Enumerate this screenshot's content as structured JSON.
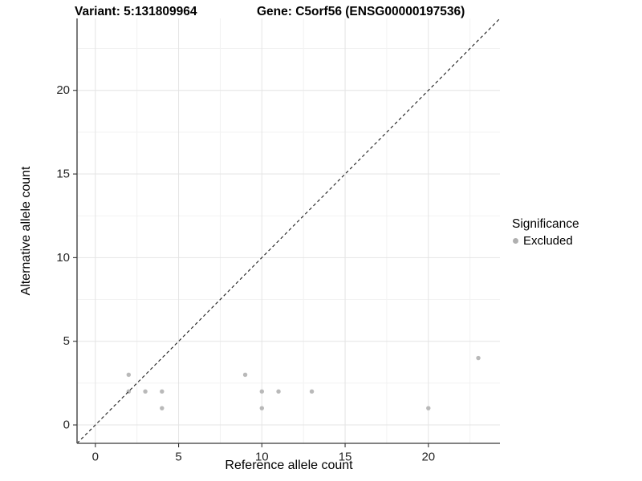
{
  "header": {
    "variant_title": "Variant: 5:131809964",
    "gene_title": "Gene: C5orf56 (ENSG00000197536)"
  },
  "chart_data": {
    "type": "scatter",
    "xlabel": "Reference allele count",
    "ylabel": "Alternative allele count",
    "xlim": [
      -1.1,
      24.3
    ],
    "ylim": [
      -1.1,
      24.3
    ],
    "x_ticks": [
      0,
      5,
      10,
      15,
      20
    ],
    "y_ticks": [
      0,
      5,
      10,
      15,
      20
    ],
    "x_minor_ticks": [
      2.5,
      7.5,
      12.5,
      17.5,
      22.5
    ],
    "y_minor_ticks": [
      2.5,
      7.5,
      12.5,
      17.5,
      22.5
    ],
    "grid": "on",
    "identity_line": {
      "type": "dashed",
      "slope": 1,
      "intercept": 0
    },
    "series": [
      {
        "name": "Excluded",
        "color": "#b9b9b9",
        "points": [
          [
            2,
            2
          ],
          [
            2,
            3
          ],
          [
            3,
            2
          ],
          [
            4,
            1
          ],
          [
            4,
            2
          ],
          [
            9,
            3
          ],
          [
            10,
            1
          ],
          [
            10,
            2
          ],
          [
            11,
            2
          ],
          [
            13,
            2
          ],
          [
            20,
            1
          ],
          [
            23,
            4
          ]
        ]
      }
    ],
    "legend": {
      "position": "right",
      "title": "Significance",
      "items": [
        {
          "label": "Excluded",
          "color": "#b0b0b0"
        }
      ]
    },
    "style": {
      "point_radius": 2.7,
      "grid_major_color": "#e4e4e4",
      "grid_minor_color": "#f2f2f2",
      "axis_line_color": "#595959",
      "tick_color": "#333333",
      "dashed_line_color": "#1a1a1a"
    }
  }
}
